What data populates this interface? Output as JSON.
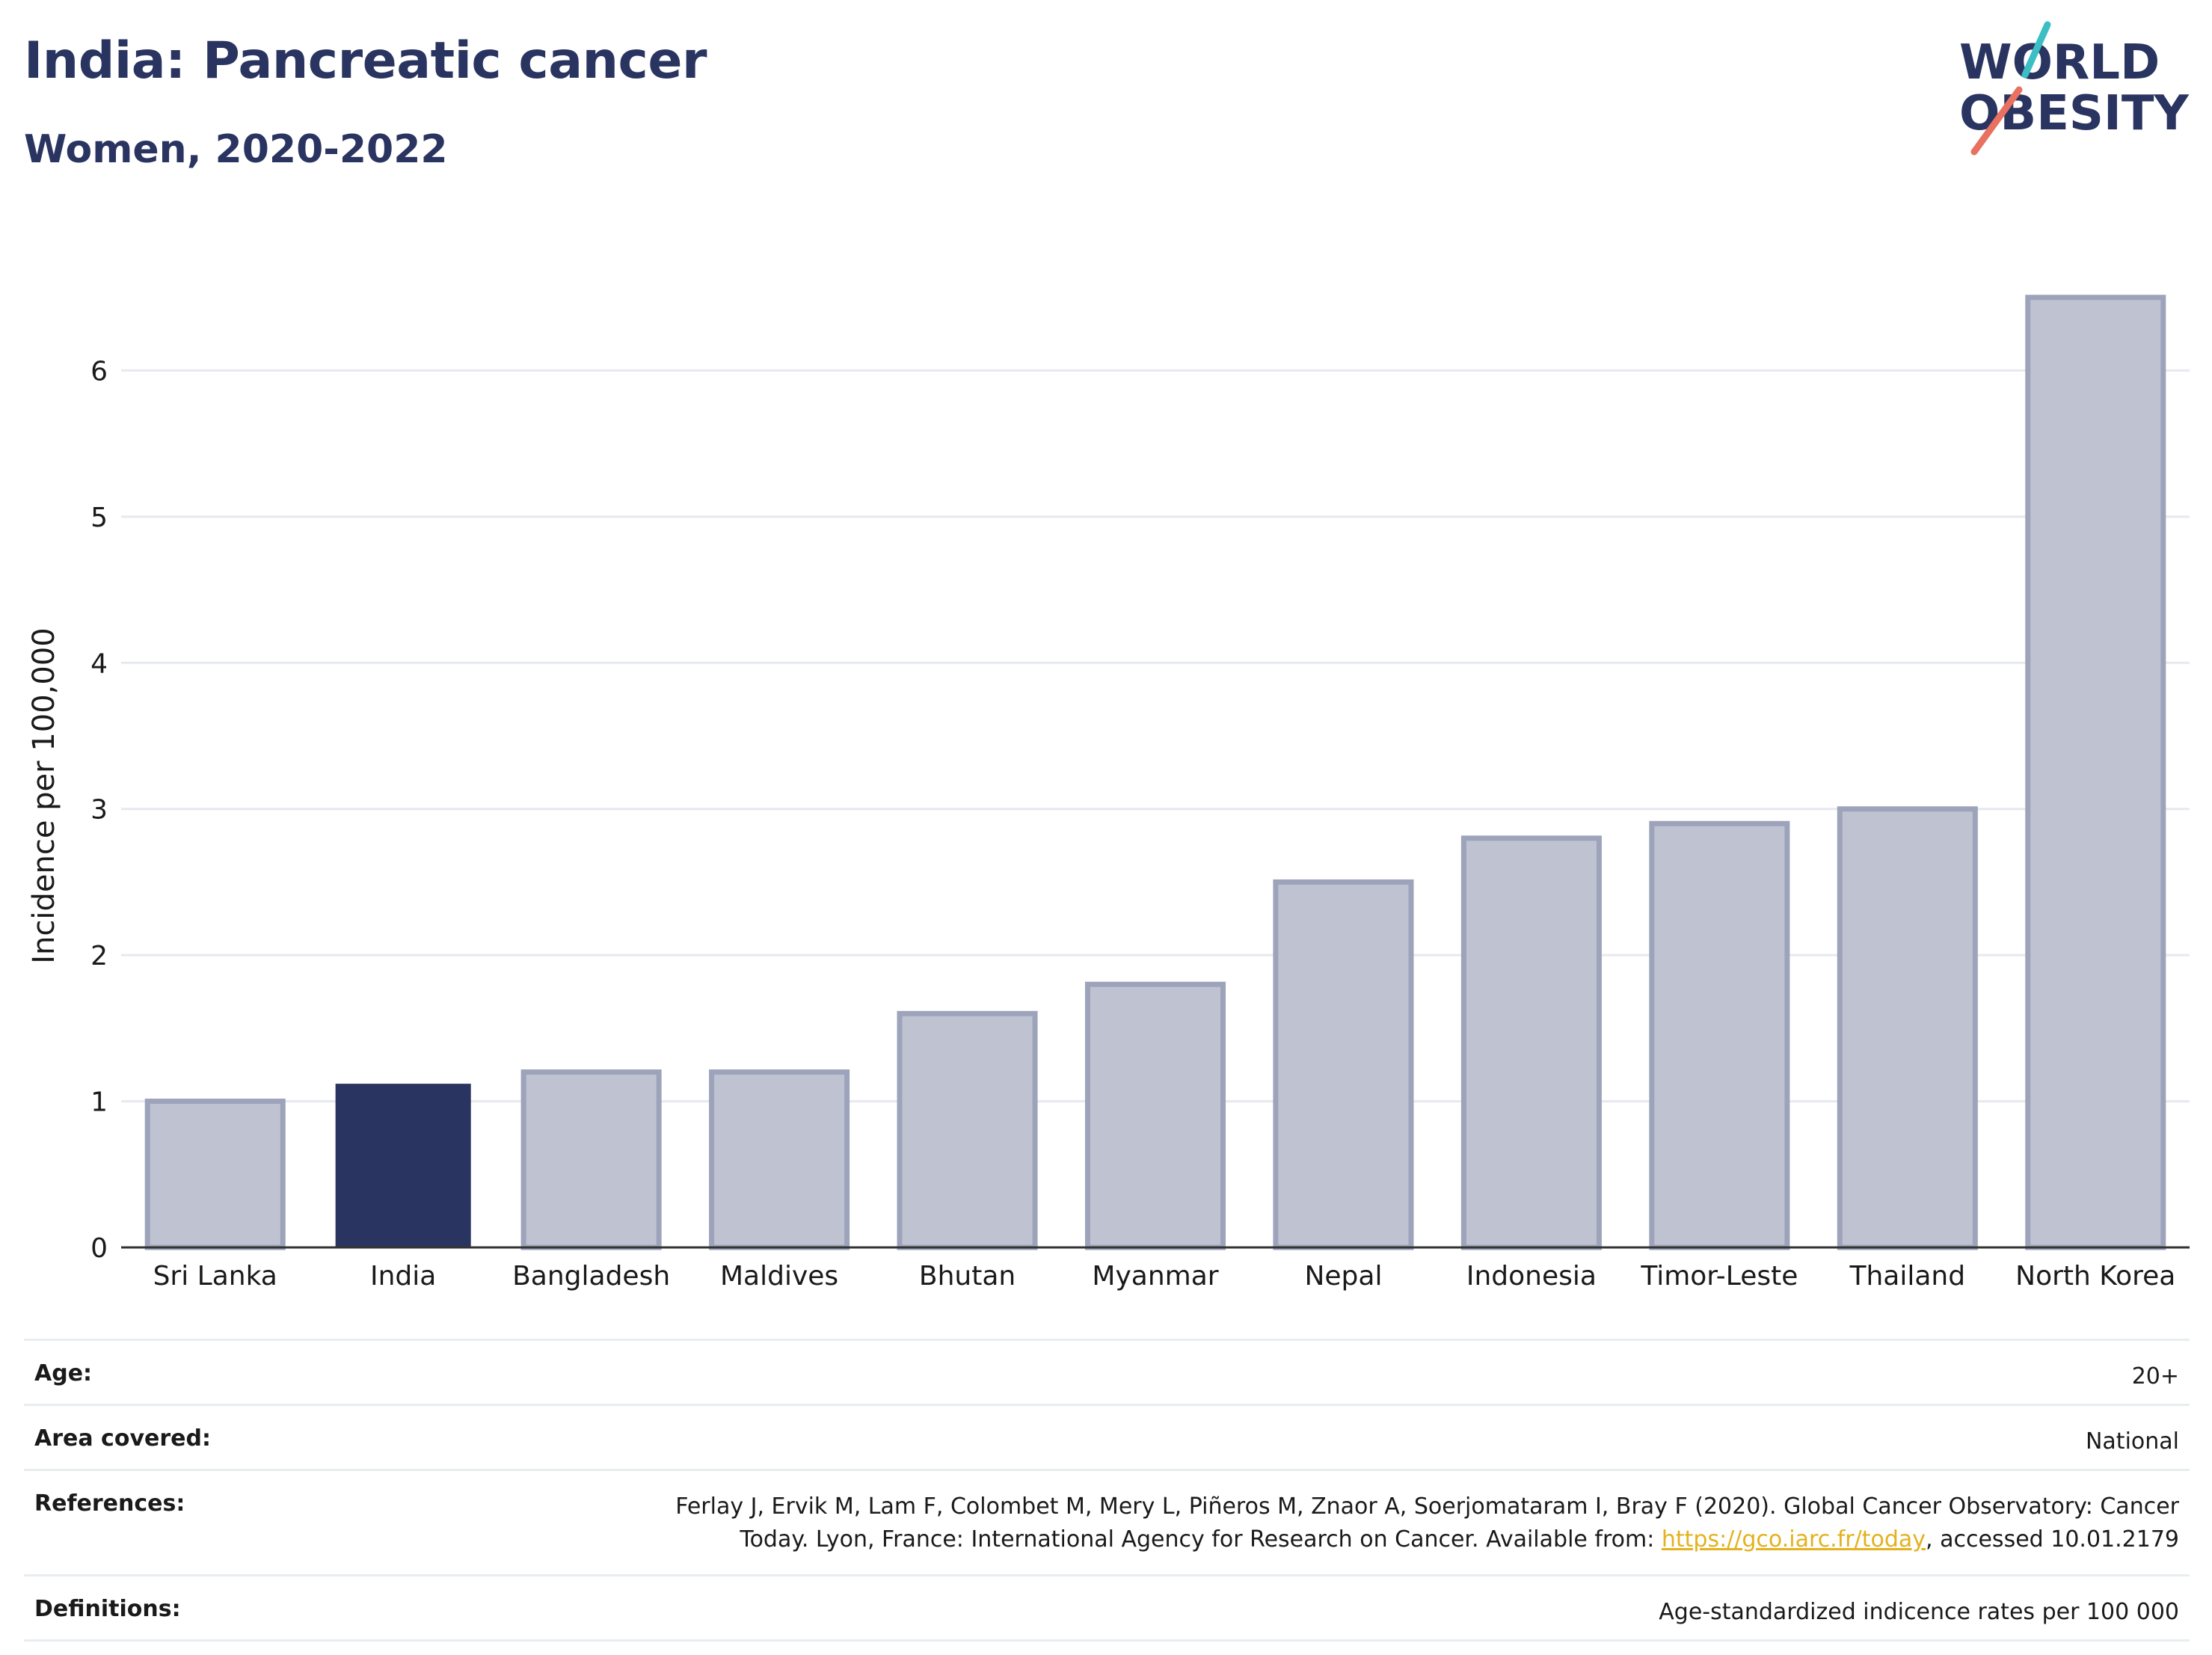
{
  "header": {
    "title": "India: Pancreatic cancer",
    "subtitle": "Women, 2020-2022"
  },
  "logo": {
    "line1": "WORLD",
    "line2": "OBESITY",
    "accent_teal": "#3bbfc4",
    "accent_coral": "#e8715f"
  },
  "chart_data": {
    "type": "bar",
    "categories": [
      "Sri Lanka",
      "India",
      "Bangladesh",
      "Maldives",
      "Bhutan",
      "Myanmar",
      "Nepal",
      "Indonesia",
      "Timor-Leste",
      "Thailand",
      "North Korea"
    ],
    "values": [
      1.0,
      1.12,
      1.2,
      1.2,
      1.6,
      1.8,
      2.5,
      2.8,
      2.9,
      3.0,
      6.5
    ],
    "highlight": "India",
    "ylabel": "Incidence per 100,000",
    "xlabel": "",
    "ylim": [
      0,
      7.0
    ],
    "yticks": [
      0,
      1,
      2,
      3,
      4,
      5,
      6
    ],
    "grid": true,
    "colors": {
      "bar": "#bfc3d1",
      "bar_border": "#9da3ba",
      "highlight": "#2a3460"
    }
  },
  "footer": {
    "age_label": "Age:",
    "age_value": "20+",
    "area_label": "Area covered:",
    "area_value": "National",
    "references_label": "References:",
    "references_line1": "Ferlay J, Ervik M, Lam F, Colombet M, Mery L, Piñeros M, Znaor A, Soerjomataram I, Bray F (2020). Global Cancer Observatory: Cancer",
    "references_line2_pre": "Today. Lyon, France: International Agency for Research on Cancer. Available from: ",
    "references_link": "https://gco.iarc.fr/today",
    "references_line2_post": ", accessed 10.01.2179",
    "definitions_label": "Definitions:",
    "definitions_value": "Age-standardized indicence rates per 100 000"
  }
}
